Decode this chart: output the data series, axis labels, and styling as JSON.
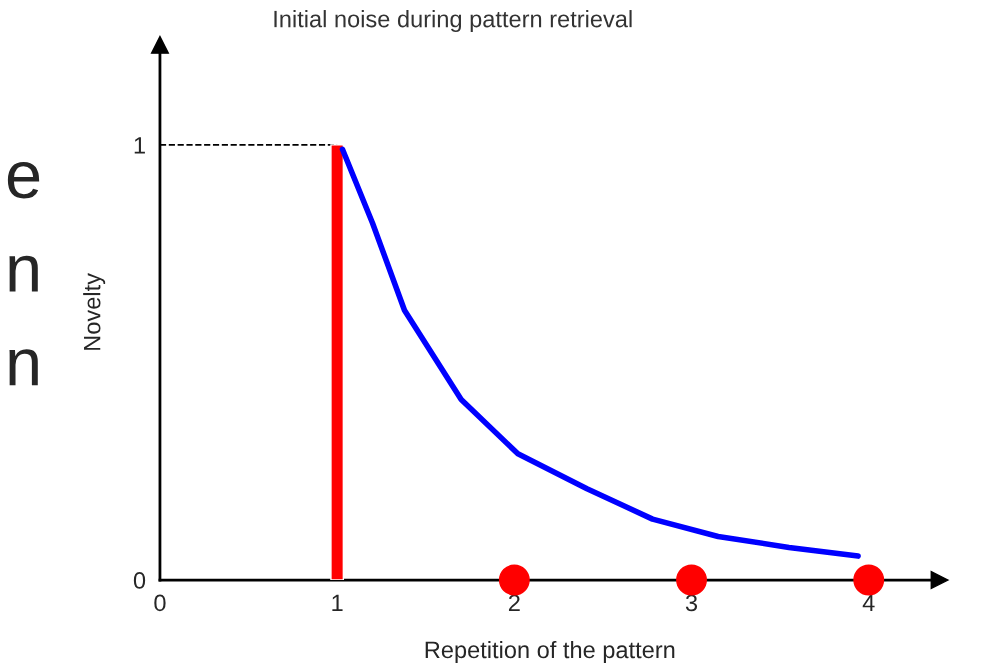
{
  "chart_data": {
    "type": "line",
    "title": "Initial noise during pattern retrieval",
    "xlabel": "Repetition of the pattern",
    "ylabel": "Novelty",
    "annotations": [
      "e",
      "n",
      "n"
    ],
    "series": [
      {
        "type": "bar",
        "color": "#ff0000",
        "x": [
          1
        ],
        "values": [
          1
        ]
      },
      {
        "color": "#0000ff",
        "x": [
          1.03,
          1.2,
          1.38,
          1.7,
          2.02,
          2.41,
          2.78,
          3.15,
          3.55,
          3.94
        ],
        "values": [
          0.99,
          0.82,
          0.62,
          0.415,
          0.29,
          0.21,
          0.14,
          0.1,
          0.075,
          0.055
        ]
      },
      {
        "type": "scatter",
        "color": "#ff0000",
        "marker": "circle",
        "x": [
          2,
          3,
          4
        ],
        "values": [
          0,
          0,
          0
        ]
      }
    ],
    "ref_lines": [
      {
        "axis": "y",
        "value": 1,
        "color": "#000000",
        "line_style": "dashed"
      }
    ],
    "xlim": [
      0,
      4.4
    ],
    "ylim": [
      0,
      1.23
    ],
    "xticks": [
      0,
      1,
      2,
      3,
      4
    ],
    "yticks": [
      0,
      1
    ],
    "grid": false,
    "legend": false
  }
}
